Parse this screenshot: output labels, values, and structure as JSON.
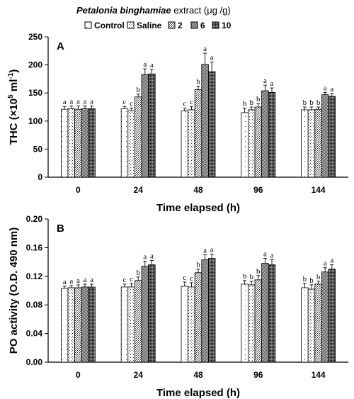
{
  "legend": {
    "title_italic": "Petalonia binghamiae",
    "title_rest": " extract (μg /g)",
    "entries": [
      "Control",
      "Saline",
      "2",
      "6",
      "10"
    ]
  },
  "chart_data": [
    {
      "type": "bar",
      "panel": "A",
      "categories": [
        "0",
        "24",
        "48",
        "96",
        "144"
      ],
      "xlabel": "Time elapsed (h)",
      "ylabel_main": "THC (×10",
      "ylabel_sup": "5",
      "ylabel_tail": " ml",
      "ylabel_sup2": "-1",
      "ylabel_close": ")",
      "ylim": [
        0,
        250
      ],
      "yticks": [
        "0",
        "50",
        "100",
        "150",
        "200",
        "250"
      ],
      "series": [
        {
          "name": "Control",
          "values": [
            121,
            122,
            118,
            115,
            120
          ],
          "errors": [
            5,
            4,
            5,
            8,
            5
          ],
          "letters": [
            "a",
            "c",
            "c",
            "b",
            "b"
          ]
        },
        {
          "name": "Saline",
          "values": [
            122,
            118,
            120,
            120,
            120
          ],
          "errors": [
            5,
            5,
            6,
            5,
            5
          ],
          "letters": [
            "a",
            "c",
            "c",
            "b",
            "b"
          ]
        },
        {
          "name": "2",
          "values": [
            121,
            143,
            156,
            125,
            121
          ],
          "errors": [
            6,
            5,
            6,
            6,
            4
          ],
          "letters": [
            "a",
            "b",
            "b",
            "b",
            "b"
          ]
        },
        {
          "name": "6",
          "values": [
            122,
            183,
            201,
            154,
            147
          ],
          "errors": [
            5,
            10,
            20,
            10,
            4
          ],
          "letters": [
            "a",
            "a",
            "a",
            "a",
            "a"
          ]
        },
        {
          "name": "10",
          "values": [
            122,
            184,
            188,
            151,
            144
          ],
          "errors": [
            5,
            8,
            17,
            8,
            5
          ],
          "letters": [
            "a",
            "a",
            "a",
            "a",
            "a"
          ]
        }
      ]
    },
    {
      "type": "bar",
      "panel": "B",
      "categories": [
        "0",
        "24",
        "48",
        "96",
        "144"
      ],
      "xlabel": "Time elapsed (h)",
      "ylabel_main": "PO activity (O.D. 490 nm)",
      "ylim": [
        0,
        0.2
      ],
      "yticks": [
        "0.00",
        "0.04",
        "0.08",
        "0.12",
        "0.16",
        "0.20"
      ],
      "series": [
        {
          "name": "Control",
          "values": [
            0.103,
            0.105,
            0.106,
            0.109,
            0.104
          ],
          "errors": [
            0.003,
            0.004,
            0.006,
            0.005,
            0.006
          ],
          "letters": [
            "a",
            "c",
            "c",
            "b",
            "b"
          ]
        },
        {
          "name": "Saline",
          "values": [
            0.104,
            0.105,
            0.105,
            0.108,
            0.102
          ],
          "errors": [
            0.003,
            0.005,
            0.006,
            0.005,
            0.006
          ],
          "letters": [
            "a",
            "c",
            "c",
            "b",
            "b"
          ]
        },
        {
          "name": "2",
          "values": [
            0.104,
            0.114,
            0.125,
            0.115,
            0.109
          ],
          "errors": [
            0.004,
            0.005,
            0.005,
            0.006,
            0.004
          ],
          "letters": [
            "a",
            "b",
            "b",
            "b",
            "b"
          ]
        },
        {
          "name": "6",
          "values": [
            0.105,
            0.134,
            0.143,
            0.138,
            0.126
          ],
          "errors": [
            0.004,
            0.007,
            0.007,
            0.007,
            0.006
          ],
          "letters": [
            "a",
            "a",
            "a",
            "a",
            "a"
          ]
        },
        {
          "name": "10",
          "values": [
            0.105,
            0.136,
            0.145,
            0.136,
            0.13
          ],
          "errors": [
            0.004,
            0.006,
            0.006,
            0.007,
            0.006
          ],
          "letters": [
            "a",
            "a",
            "a",
            "a",
            "a"
          ]
        }
      ]
    }
  ]
}
